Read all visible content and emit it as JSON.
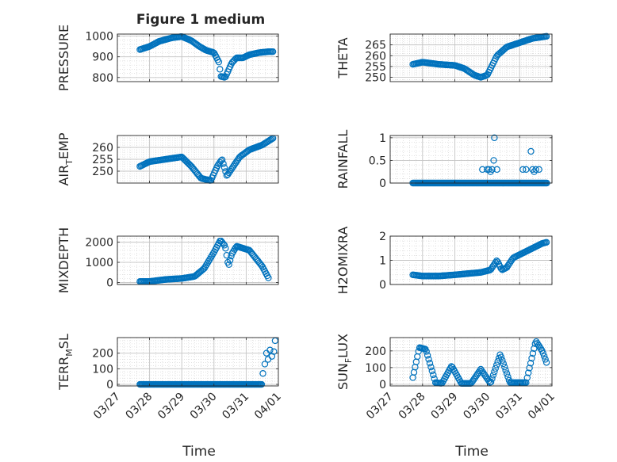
{
  "figure": {
    "title": "Figure 1 medium",
    "xlabel": "Time",
    "marker_color": "#0072BD",
    "x_ticks": [
      "03/27",
      "03/28",
      "03/29",
      "03/30",
      "03/31",
      "04/01"
    ]
  },
  "chart_data": [
    {
      "type": "scatter",
      "ylabel": "PRESSURE",
      "ylim": [
        780,
        1010
      ],
      "yticks": [
        800,
        900,
        1000
      ],
      "ytick_labels": [
        "800",
        "900",
        "1000"
      ],
      "xlim": [
        0,
        5
      ],
      "grid": true,
      "keypoints": [
        [
          0.7,
          935
        ],
        [
          1.0,
          950
        ],
        [
          1.3,
          975
        ],
        [
          1.7,
          992
        ],
        [
          2.0,
          998
        ],
        [
          2.3,
          978
        ],
        [
          2.55,
          950
        ],
        [
          2.75,
          932
        ],
        [
          3.0,
          920
        ],
        [
          3.15,
          875
        ],
        [
          3.22,
          805
        ],
        [
          3.35,
          800
        ],
        [
          3.55,
          870
        ],
        [
          3.7,
          895
        ],
        [
          3.9,
          895
        ],
        [
          4.1,
          910
        ],
        [
          4.4,
          920
        ],
        [
          4.7,
          925
        ],
        [
          4.85,
          925
        ]
      ]
    },
    {
      "type": "scatter",
      "ylabel": "THETA",
      "ylim": [
        248,
        270
      ],
      "yticks": [
        250,
        255,
        260,
        265
      ],
      "ytick_labels": [
        "250",
        "255",
        "260",
        "265"
      ],
      "xlim": [
        0,
        5
      ],
      "grid": true,
      "keypoints": [
        [
          0.7,
          256
        ],
        [
          1.0,
          257
        ],
        [
          1.5,
          256
        ],
        [
          2.0,
          255.5
        ],
        [
          2.3,
          254
        ],
        [
          2.6,
          251
        ],
        [
          2.8,
          250
        ],
        [
          3.0,
          251
        ],
        [
          3.3,
          260
        ],
        [
          3.6,
          264
        ],
        [
          4.0,
          266
        ],
        [
          4.4,
          268
        ],
        [
          4.85,
          269
        ]
      ]
    },
    {
      "type": "scatter",
      "ylabel": "AIR_TEMP",
      "ylim": [
        245,
        265
      ],
      "yticks": [
        250,
        255,
        260
      ],
      "ytick_labels": [
        "250",
        "255",
        "260"
      ],
      "xlim": [
        0,
        5
      ],
      "grid": true,
      "keypoints": [
        [
          0.7,
          252
        ],
        [
          1.0,
          254
        ],
        [
          1.5,
          255
        ],
        [
          2.0,
          256
        ],
        [
          2.3,
          252
        ],
        [
          2.6,
          247
        ],
        [
          2.9,
          246
        ],
        [
          3.1,
          252
        ],
        [
          3.25,
          255
        ],
        [
          3.4,
          248
        ],
        [
          3.6,
          252
        ],
        [
          3.8,
          256
        ],
        [
          4.1,
          259
        ],
        [
          4.5,
          261
        ],
        [
          4.85,
          264
        ]
      ]
    },
    {
      "type": "scatter",
      "ylabel": "RAINFALL",
      "ylim": [
        0,
        1.05
      ],
      "yticks": [
        0,
        0.5,
        1
      ],
      "ytick_labels": [
        "0",
        "0.5",
        "1"
      ],
      "xlim": [
        0,
        5
      ],
      "grid": true,
      "baseline": [
        0.7,
        4.85,
        0
      ],
      "extra_points": [
        [
          2.85,
          0.3
        ],
        [
          3.0,
          0.3
        ],
        [
          3.05,
          0.3
        ],
        [
          3.1,
          0.25
        ],
        [
          3.15,
          0.3
        ],
        [
          3.2,
          0.5
        ],
        [
          3.22,
          1.0
        ],
        [
          3.3,
          0.3
        ],
        [
          4.1,
          0.3
        ],
        [
          4.2,
          0.3
        ],
        [
          4.35,
          0.7
        ],
        [
          4.4,
          0.3
        ],
        [
          4.45,
          0.25
        ],
        [
          4.5,
          0.3
        ],
        [
          4.6,
          0.3
        ]
      ]
    },
    {
      "type": "scatter",
      "ylabel": "MIXDEPTH",
      "ylim": [
        -100,
        2300
      ],
      "yticks": [
        0,
        1000,
        2000
      ],
      "ytick_labels": [
        "0",
        "1000",
        "2000"
      ],
      "xlim": [
        0,
        5
      ],
      "grid": true,
      "keypoints": [
        [
          0.7,
          50
        ],
        [
          1.0,
          50
        ],
        [
          1.5,
          150
        ],
        [
          2.0,
          200
        ],
        [
          2.4,
          300
        ],
        [
          2.7,
          700
        ],
        [
          3.0,
          1500
        ],
        [
          3.2,
          2100
        ],
        [
          3.35,
          1800
        ],
        [
          3.45,
          800
        ],
        [
          3.55,
          1400
        ],
        [
          3.7,
          1800
        ],
        [
          3.9,
          1700
        ],
        [
          4.1,
          1600
        ],
        [
          4.3,
          1200
        ],
        [
          4.5,
          800
        ],
        [
          4.7,
          200
        ]
      ]
    },
    {
      "type": "scatter",
      "ylabel": "H2OMIXRA",
      "ylim": [
        0,
        2
      ],
      "yticks": [
        0,
        1,
        2
      ],
      "ytick_labels": [
        "0",
        "1",
        "2"
      ],
      "xlim": [
        0,
        5
      ],
      "grid": true,
      "keypoints": [
        [
          0.7,
          0.4
        ],
        [
          1.0,
          0.35
        ],
        [
          1.5,
          0.35
        ],
        [
          2.0,
          0.4
        ],
        [
          2.4,
          0.45
        ],
        [
          2.8,
          0.5
        ],
        [
          3.1,
          0.6
        ],
        [
          3.3,
          1.0
        ],
        [
          3.45,
          0.6
        ],
        [
          3.6,
          0.7
        ],
        [
          3.8,
          1.1
        ],
        [
          4.1,
          1.3
        ],
        [
          4.4,
          1.5
        ],
        [
          4.7,
          1.7
        ],
        [
          4.85,
          1.75
        ]
      ]
    },
    {
      "type": "scatter",
      "ylabel": "TERR_MSL",
      "ylim": [
        -10,
        300
      ],
      "yticks": [
        0,
        100,
        200
      ],
      "ytick_labels": [
        "0",
        "100",
        "200"
      ],
      "xlim": [
        0,
        5
      ],
      "grid": true,
      "baseline": [
        0.7,
        4.5,
        0
      ],
      "extra_points": [
        [
          4.52,
          70
        ],
        [
          4.58,
          130
        ],
        [
          4.63,
          200
        ],
        [
          4.68,
          160
        ],
        [
          4.74,
          220
        ],
        [
          4.8,
          180
        ],
        [
          4.86,
          210
        ],
        [
          4.9,
          280
        ]
      ]
    },
    {
      "type": "scatter",
      "ylabel": "SUN_FLUX",
      "ylim": [
        -10,
        280
      ],
      "yticks": [
        0,
        100,
        200
      ],
      "ytick_labels": [
        "0",
        "100",
        "200"
      ],
      "xlim": [
        0,
        5
      ],
      "grid": true,
      "keypoints": [
        [
          0.7,
          40
        ],
        [
          0.9,
          220
        ],
        [
          1.1,
          210
        ],
        [
          1.4,
          10
        ],
        [
          1.6,
          5
        ],
        [
          1.9,
          110
        ],
        [
          2.2,
          5
        ],
        [
          2.5,
          5
        ],
        [
          2.8,
          90
        ],
        [
          3.1,
          5
        ],
        [
          3.4,
          180
        ],
        [
          3.7,
          10
        ],
        [
          4.2,
          10
        ],
        [
          4.5,
          260
        ],
        [
          4.7,
          200
        ],
        [
          4.85,
          120
        ]
      ]
    }
  ]
}
